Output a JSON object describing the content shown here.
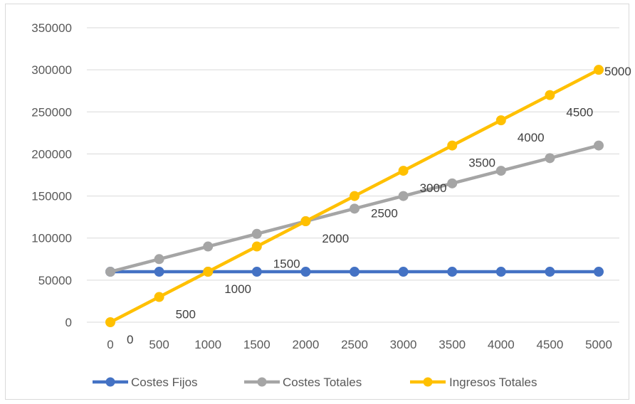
{
  "chart_data": {
    "type": "line",
    "title": "",
    "xlabel": "",
    "ylabel": "",
    "x": [
      0,
      500,
      1000,
      1500,
      2000,
      2500,
      3000,
      3500,
      4000,
      4500,
      5000
    ],
    "x_tick_labels": [
      "0",
      "500",
      "1000",
      "1500",
      "2000",
      "2500",
      "3000",
      "3500",
      "4000",
      "4500",
      "5000"
    ],
    "ylim": [
      0,
      350000
    ],
    "y_ticks": [
      0,
      50000,
      100000,
      150000,
      200000,
      250000,
      300000,
      350000
    ],
    "y_tick_labels": [
      "0",
      "50000",
      "100000",
      "150000",
      "200000",
      "250000",
      "300000",
      "350000"
    ],
    "grid": true,
    "legend_position": "bottom",
    "series": [
      {
        "name": "Costes Fijos",
        "color": "#4472c4",
        "values": [
          60000,
          60000,
          60000,
          60000,
          60000,
          60000,
          60000,
          60000,
          60000,
          60000,
          60000
        ]
      },
      {
        "name": "Costes Totales",
        "color": "#a5a5a5",
        "values": [
          60000,
          75000,
          90000,
          105000,
          120000,
          135000,
          150000,
          165000,
          180000,
          195000,
          210000
        ]
      },
      {
        "name": "Ingresos Totales",
        "color": "#ffc000",
        "values": [
          0,
          30000,
          60000,
          90000,
          120000,
          150000,
          180000,
          210000,
          240000,
          270000,
          300000
        ],
        "data_labels": [
          "0",
          "500",
          "1000",
          "1500",
          "2000",
          "2500",
          "3000",
          "3500",
          "4000",
          "4500",
          "5000"
        ]
      }
    ]
  }
}
